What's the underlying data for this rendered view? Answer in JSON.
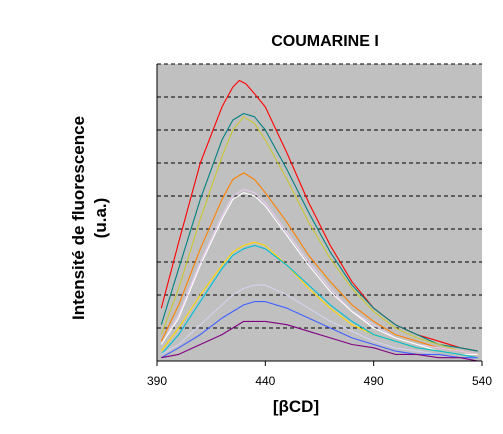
{
  "chart_data": {
    "type": "line",
    "title": "COUMARINE I",
    "xlabel": "[βCD]",
    "ylabel_lines": [
      "Intensité de fluorescence",
      "(u.a.)"
    ],
    "xlim": [
      390,
      540
    ],
    "ylim": [
      0,
      90
    ],
    "xticks": [
      "390",
      "440",
      "490",
      "540"
    ],
    "grid": "horizontal-dashed",
    "plot_background": "#c0c0c0",
    "series": [
      {
        "color": "#ff0000",
        "x": [
          392,
          400,
          410,
          420,
          425,
          428,
          431,
          435,
          440,
          450,
          460,
          470,
          480,
          490,
          500,
          510,
          520,
          530,
          538
        ],
        "y": [
          16,
          36,
          60,
          77,
          83,
          85,
          84,
          81,
          77,
          63,
          48,
          35,
          24,
          16,
          11,
          8,
          6,
          4,
          3
        ]
      },
      {
        "color": "#008080",
        "x": [
          392,
          400,
          410,
          420,
          425,
          430,
          435,
          440,
          450,
          460,
          470,
          480,
          490,
          500,
          510,
          520,
          530,
          538
        ],
        "y": [
          11,
          28,
          49,
          67,
          73,
          75,
          74,
          70,
          58,
          45,
          33,
          23,
          16,
          11,
          8,
          5,
          4,
          3
        ]
      },
      {
        "color": "#c8c832",
        "x": [
          392,
          400,
          410,
          420,
          425,
          430,
          435,
          440,
          450,
          460,
          470,
          480,
          490,
          500,
          510,
          520,
          530,
          538
        ],
        "y": [
          8,
          22,
          43,
          62,
          70,
          74,
          72,
          67,
          55,
          42,
          31,
          22,
          15,
          10,
          7,
          5,
          3,
          2
        ]
      },
      {
        "color": "#ff8000",
        "x": [
          392,
          400,
          410,
          420,
          425,
          430,
          435,
          440,
          450,
          460,
          470,
          480,
          490,
          500,
          510,
          520,
          530,
          538
        ],
        "y": [
          6,
          17,
          34,
          49,
          55,
          57,
          55,
          51,
          42,
          32,
          24,
          17,
          12,
          8,
          6,
          4,
          3,
          2
        ]
      },
      {
        "color": "#e6c8f0",
        "x": [
          392,
          400,
          410,
          420,
          425,
          430,
          435,
          440,
          450,
          460,
          470,
          480,
          490,
          500,
          510,
          520,
          530,
          538
        ],
        "y": [
          5,
          14,
          30,
          44,
          50,
          52,
          51,
          48,
          39,
          30,
          22,
          15,
          11,
          7,
          5,
          4,
          3,
          2
        ]
      },
      {
        "color": "#ffffff",
        "x": [
          392,
          400,
          410,
          420,
          425,
          430,
          435,
          440,
          450,
          460,
          470,
          480,
          490,
          500,
          510,
          520,
          530,
          538
        ],
        "y": [
          5,
          13,
          29,
          43,
          49,
          51,
          50,
          47,
          38,
          29,
          21,
          15,
          10,
          7,
          5,
          3,
          2,
          2
        ]
      },
      {
        "color": "#ffd700",
        "x": [
          392,
          400,
          410,
          420,
          425,
          430,
          435,
          440,
          450,
          460,
          470,
          480,
          490,
          500,
          510,
          520,
          530,
          538
        ],
        "y": [
          3,
          10,
          20,
          29,
          33,
          35,
          36,
          35,
          29,
          22,
          16,
          11,
          8,
          6,
          4,
          3,
          2,
          1
        ]
      },
      {
        "color": "#00bcd4",
        "x": [
          392,
          400,
          410,
          420,
          425,
          430,
          435,
          440,
          450,
          460,
          470,
          480,
          490,
          500,
          510,
          520,
          530,
          538
        ],
        "y": [
          2,
          8,
          18,
          28,
          32,
          34,
          35,
          34,
          29,
          23,
          17,
          12,
          8,
          6,
          4,
          3,
          2,
          1
        ]
      },
      {
        "color": "#d2d2f0",
        "x": [
          392,
          400,
          410,
          420,
          425,
          430,
          435,
          440,
          450,
          460,
          470,
          480,
          490,
          500,
          510,
          520,
          530,
          538
        ],
        "y": [
          2,
          5,
          11,
          17,
          20,
          22,
          23,
          23,
          20,
          16,
          12,
          9,
          6,
          4,
          3,
          2,
          1,
          1
        ]
      },
      {
        "color": "#4060ff",
        "x": [
          392,
          400,
          410,
          420,
          425,
          430,
          435,
          440,
          450,
          460,
          470,
          480,
          490,
          500,
          510,
          520,
          530,
          538
        ],
        "y": [
          1,
          4,
          8,
          13,
          15,
          17,
          18,
          18,
          16,
          13,
          10,
          7,
          5,
          3,
          2,
          2,
          1,
          1
        ]
      },
      {
        "color": "#800080",
        "x": [
          392,
          400,
          410,
          420,
          425,
          430,
          435,
          440,
          450,
          460,
          470,
          480,
          490,
          500,
          510,
          520,
          530,
          538
        ],
        "y": [
          1,
          2,
          5,
          8,
          10,
          12,
          12,
          12,
          11,
          9,
          7,
          5,
          4,
          2,
          2,
          1,
          1,
          0
        ]
      }
    ]
  }
}
